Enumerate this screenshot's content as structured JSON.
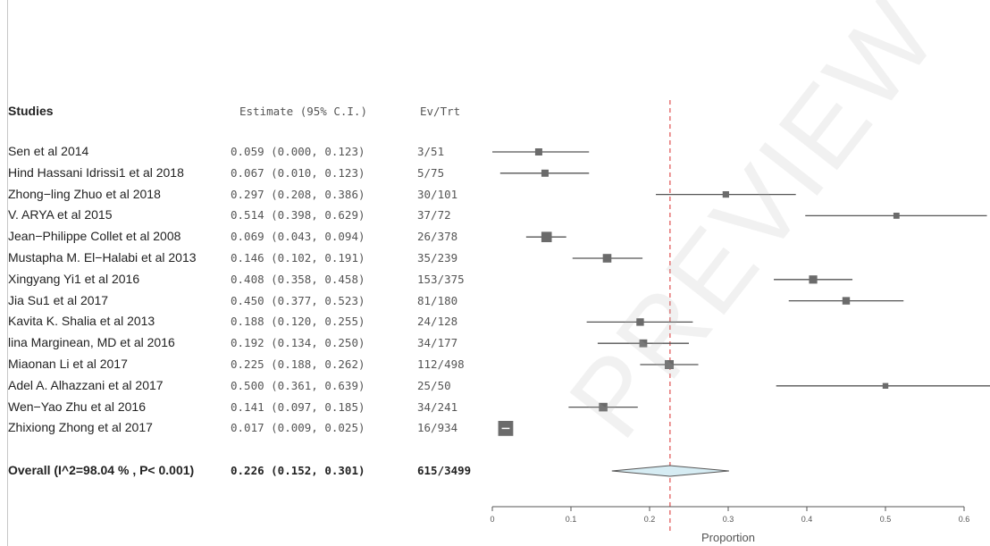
{
  "headers": {
    "studies": "Studies",
    "estimate": "Estimate (95% C.I.)",
    "evtrt": "Ev/Trt"
  },
  "chart_data": {
    "type": "forest",
    "xlabel": "Proportion",
    "xlim": [
      0,
      0.6
    ],
    "xticks": [
      "0",
      "0.1",
      "0.2",
      "0.3",
      "0.4",
      "0.5",
      "0.6"
    ],
    "reference_line": 0.226,
    "studies": [
      {
        "name": "Sen et al 2014",
        "est": 0.059,
        "lo": 0.0,
        "hi": 0.123,
        "ci_text": "0.059 (0.000, 0.123)",
        "evtrt": "3/51",
        "weight": 0.5
      },
      {
        "name": "Hind Hassani Idrissi1 et al 2018",
        "est": 0.067,
        "lo": 0.01,
        "hi": 0.123,
        "ci_text": "0.067 (0.010, 0.123)",
        "evtrt": "5/75",
        "weight": 0.5
      },
      {
        "name": "Zhong−ling Zhuo et al 2018",
        "est": 0.297,
        "lo": 0.208,
        "hi": 0.386,
        "ci_text": "0.297 (0.208, 0.386)",
        "evtrt": "30/101",
        "weight": 0.4
      },
      {
        "name": "V. ARYA et al 2015",
        "est": 0.514,
        "lo": 0.398,
        "hi": 0.629,
        "ci_text": "0.514 (0.398, 0.629)",
        "evtrt": "37/72",
        "weight": 0.35
      },
      {
        "name": "Jean−Philippe Collet et al 2008",
        "est": 0.069,
        "lo": 0.043,
        "hi": 0.094,
        "ci_text": "0.069 (0.043, 0.094)",
        "evtrt": "26/378",
        "weight": 0.95
      },
      {
        "name": "Mustapha M. El−Halabi et al 2013",
        "est": 0.146,
        "lo": 0.102,
        "hi": 0.191,
        "ci_text": "0.146 (0.102, 0.191)",
        "evtrt": "35/239",
        "weight": 0.7
      },
      {
        "name": "Xingyang Yi1 et al 2016",
        "est": 0.408,
        "lo": 0.358,
        "hi": 0.458,
        "ci_text": "0.408 (0.358, 0.458)",
        "evtrt": "153/375",
        "weight": 0.65
      },
      {
        "name": "Jia Su1 et al 2017",
        "est": 0.45,
        "lo": 0.377,
        "hi": 0.523,
        "ci_text": "0.450 (0.377, 0.523)",
        "evtrt": "81/180",
        "weight": 0.55
      },
      {
        "name": "Kavita K. Shalia et al 2013",
        "est": 0.188,
        "lo": 0.12,
        "hi": 0.255,
        "ci_text": "0.188 (0.120, 0.255)",
        "evtrt": "24/128",
        "weight": 0.55
      },
      {
        "name": "lina Marginean, MD et al 2016",
        "est": 0.192,
        "lo": 0.134,
        "hi": 0.25,
        "ci_text": "0.192 (0.134, 0.250)",
        "evtrt": "34/177",
        "weight": 0.6
      },
      {
        "name": "Miaonan Li et al 2017",
        "est": 0.225,
        "lo": 0.188,
        "hi": 0.262,
        "ci_text": "0.225 (0.188, 0.262)",
        "evtrt": "112/498",
        "weight": 0.75
      },
      {
        "name": "Adel A. Alhazzani et al 2017",
        "est": 0.5,
        "lo": 0.361,
        "hi": 0.639,
        "ci_text": "0.500 (0.361, 0.639)",
        "evtrt": "25/50",
        "weight": 0.3
      },
      {
        "name": "Wen−Yao Zhu et al  2016",
        "est": 0.141,
        "lo": 0.097,
        "hi": 0.185,
        "ci_text": "0.141 (0.097, 0.185)",
        "evtrt": "34/241",
        "weight": 0.7
      },
      {
        "name": "Zhixiong Zhong et al 2017",
        "est": 0.017,
        "lo": 0.009,
        "hi": 0.025,
        "ci_text": "0.017 (0.009, 0.025)",
        "evtrt": "16/934",
        "weight": 1.6
      }
    ],
    "overall": {
      "name": "Overall (I^2=98.04 % , P< 0.001)",
      "est": 0.226,
      "lo": 0.152,
      "hi": 0.301,
      "ci_text": "0.226 (0.152, 0.301)",
      "evtrt": "615/3499"
    }
  },
  "colors": {
    "marker": "#6b6b6b",
    "ci_line": "#555555",
    "ref_line": "#e05050",
    "diamond_fill": "#d6ecf3",
    "diamond_stroke": "#555555"
  },
  "watermark": "PREVIEW"
}
